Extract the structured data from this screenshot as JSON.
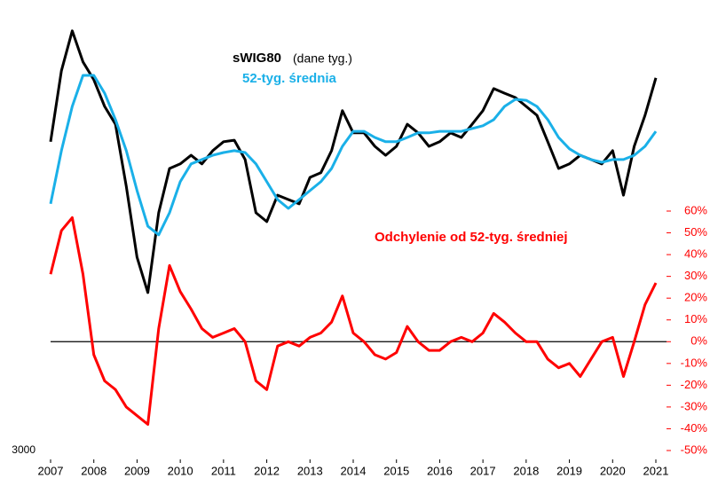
{
  "chart_data": {
    "type": "line",
    "annotation": "(dane tyg.)",
    "x": [
      2007,
      2007.25,
      2007.5,
      2007.75,
      2008,
      2008.25,
      2008.5,
      2008.75,
      2009,
      2009.25,
      2009.5,
      2009.75,
      2010,
      2010.25,
      2010.5,
      2010.75,
      2011,
      2011.25,
      2011.5,
      2011.75,
      2012,
      2012.25,
      2012.5,
      2012.75,
      2013,
      2013.25,
      2013.5,
      2013.75,
      2014,
      2014.25,
      2014.5,
      2014.75,
      2015,
      2015.25,
      2015.5,
      2015.75,
      2016,
      2016.25,
      2016.5,
      2016.75,
      2017,
      2017.25,
      2017.5,
      2017.75,
      2018,
      2018.25,
      2018.5,
      2018.75,
      2019,
      2019.25,
      2019.5,
      2019.75,
      2020,
      2020.25,
      2020.5,
      2020.75,
      2021
    ],
    "xlim": [
      2007,
      2021
    ],
    "xticks": [
      2007,
      2008,
      2009,
      2010,
      2011,
      2012,
      2013,
      2014,
      2015,
      2016,
      2017,
      2018,
      2019,
      2020,
      2021
    ],
    "ylim": [
      3000,
      17000
    ],
    "yticks": [
      3000
    ],
    "y2lim": [
      -50,
      60
    ],
    "y2ticks": [
      {
        "value": -50,
        "label": "-50%"
      },
      {
        "value": -40,
        "label": "-40%"
      },
      {
        "value": -30,
        "label": "-30%"
      },
      {
        "value": -20,
        "label": "-20%"
      },
      {
        "value": -10,
        "label": "-10%"
      },
      {
        "value": 0,
        "label": "0%"
      },
      {
        "value": 10,
        "label": "10%"
      },
      {
        "value": 20,
        "label": "20%"
      },
      {
        "value": 30,
        "label": "30%"
      },
      {
        "value": 40,
        "label": "40%"
      },
      {
        "value": 50,
        "label": "50%"
      },
      {
        "value": 60,
        "label": "60%"
      }
    ],
    "series": [
      {
        "name": "sWIG80",
        "color": "#000000",
        "axis": "y",
        "values": [
          13050,
          15360,
          16660,
          15650,
          15070,
          14200,
          13620,
          11600,
          9290,
          8140,
          10740,
          12180,
          12330,
          12610,
          12330,
          12760,
          13050,
          13100,
          12470,
          10740,
          10450,
          11310,
          11170,
          11030,
          11890,
          12040,
          12760,
          14060,
          13340,
          13340,
          12900,
          12610,
          12900,
          13620,
          13340,
          12900,
          13050,
          13340,
          13190,
          13620,
          14060,
          14780,
          14630,
          14490,
          14200,
          13910,
          13050,
          12180,
          12330,
          12610,
          12470,
          12330,
          12760,
          11310,
          12900,
          13910,
          15130
        ]
      },
      {
        "name": "52-tyg. średnia",
        "color": "#1ab0e8",
        "axis": "y",
        "values": [
          11030,
          12760,
          14200,
          15210,
          15210,
          14630,
          13770,
          12760,
          11460,
          10300,
          10020,
          10740,
          11750,
          12330,
          12470,
          12610,
          12700,
          12760,
          12700,
          12330,
          11750,
          11170,
          10880,
          11170,
          11460,
          11750,
          12180,
          12900,
          13390,
          13390,
          13190,
          13050,
          13050,
          13190,
          13340,
          13340,
          13390,
          13390,
          13390,
          13480,
          13570,
          13770,
          14200,
          14430,
          14400,
          14200,
          13770,
          13190,
          12820,
          12610,
          12470,
          12380,
          12470,
          12470,
          12610,
          12900,
          13390
        ]
      },
      {
        "name": "Odchylenie od 52-tyg. średniej",
        "color": "#ff0000",
        "axis": "y2",
        "values": [
          31,
          51,
          57,
          31,
          -6,
          -18,
          -22,
          -30,
          -34,
          -38,
          6,
          35,
          23,
          15,
          6,
          2,
          4,
          6,
          0,
          -18,
          -22,
          -2,
          0,
          -2,
          2,
          4,
          9,
          21,
          4,
          0,
          -6,
          -8,
          -5,
          7,
          0,
          -4,
          -4,
          0,
          2,
          0,
          4,
          13,
          9,
          4,
          0,
          0,
          -8,
          -12,
          -10,
          -16,
          -8,
          0,
          2,
          -16,
          0,
          17,
          27
        ]
      }
    ]
  }
}
